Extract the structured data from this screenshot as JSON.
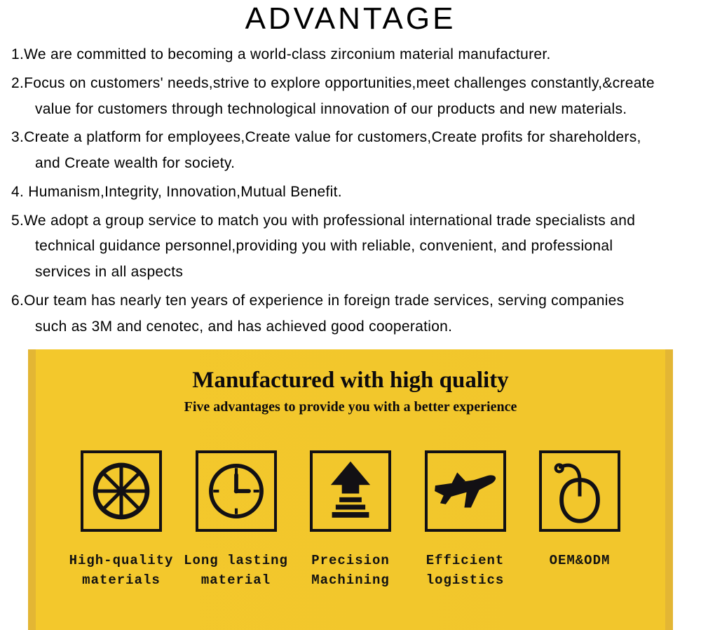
{
  "header": {
    "title": "ADVANTAGE",
    "accent_color": "#3ea6d6",
    "title_color": "#000000",
    "title_fontsize": 44,
    "title_letter_spacing": 4
  },
  "list": {
    "font_size": 21,
    "text_color": "#000000",
    "items": [
      {
        "num": "1.",
        "text": "We are committed to becoming a world-class zirconium material manufacturer."
      },
      {
        "num": "2.",
        "text": "Focus on customers' needs,strive to explore opportunities,meet challenges constantly,&create",
        "cont": "value for customers through technological innovation of our products and new materials."
      },
      {
        "num": "3.",
        "text": "Create a platform for employees,Create value for customers,Create profits for shareholders,",
        "cont": "and Create wealth for society."
      },
      {
        "num": "4.",
        "text": " Humanism,Integrity, Innovation,Mutual Benefit."
      },
      {
        "num": "5.",
        "text": "We adopt a group service to match you with professional international trade specialists and",
        "cont": "technical guidance personnel,providing you with reliable, convenient, and professional\nservices in all aspects"
      },
      {
        "num": "6.",
        "text": "Our team has nearly ten years of experience in foreign trade services, serving  companies",
        "cont": "such as 3M and cenotec, and has achieved good cooperation."
      }
    ]
  },
  "banner": {
    "background_color": "#f2c62c",
    "edge_shadow_color": "#e3b634",
    "title": "Manufactured with high quality",
    "subtitle": "Five advantages to provide you with a better experience",
    "title_color": "#0c0a0d",
    "title_fontsize": 33,
    "subtitle_fontsize": 20,
    "icon_border_color": "#121014",
    "icon_fill_color": "#121014",
    "label_font_size": 19,
    "features": [
      {
        "icon": "wheel",
        "label": "High-quality\nmaterials"
      },
      {
        "icon": "clock",
        "label": "Long lasting\nmaterial"
      },
      {
        "icon": "arrow",
        "label": "Precision\nMachining"
      },
      {
        "icon": "plane",
        "label": "Efficient\nlogistics"
      },
      {
        "icon": "mouse",
        "label": "OEM&ODM"
      }
    ]
  }
}
